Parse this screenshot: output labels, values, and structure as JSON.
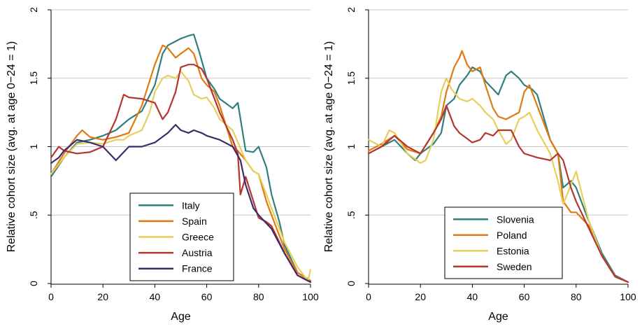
{
  "chart_data": [
    {
      "type": "line",
      "xlabel": "Age",
      "ylabel": "Relative cohort size (avg. at age 0−24 = 1)",
      "xlim": [
        0,
        100
      ],
      "ylim": [
        0,
        2
      ],
      "xticks": [
        0,
        20,
        40,
        60,
        80,
        100
      ],
      "yticks": [
        0,
        0.5,
        1,
        1.5,
        2
      ],
      "ytick_labels": [
        "0",
        ".5",
        "1",
        "1.5",
        "2"
      ],
      "grid": "horizontal",
      "legend_position": "bottom-right",
      "series": [
        {
          "name": "Italy",
          "color": "#2f7f7f",
          "x": [
            0,
            5,
            10,
            15,
            20,
            25,
            30,
            35,
            40,
            43,
            45,
            48,
            50,
            53,
            55,
            57,
            60,
            63,
            65,
            70,
            72,
            75,
            78,
            80,
            83,
            85,
            88,
            90,
            95,
            100
          ],
          "y": [
            0.78,
            0.92,
            1.03,
            1.05,
            1.08,
            1.12,
            1.2,
            1.26,
            1.45,
            1.68,
            1.74,
            1.77,
            1.79,
            1.81,
            1.82,
            1.7,
            1.5,
            1.42,
            1.35,
            1.28,
            1.32,
            0.97,
            0.96,
            1.0,
            0.85,
            0.65,
            0.45,
            0.28,
            0.08,
            0.02
          ]
        },
        {
          "name": "Spain",
          "color": "#e07a10",
          "x": [
            0,
            5,
            10,
            12,
            15,
            20,
            25,
            30,
            35,
            40,
            43,
            45,
            48,
            50,
            53,
            55,
            58,
            60,
            63,
            65,
            70,
            72,
            75,
            78,
            80,
            83,
            85,
            88,
            90,
            95,
            100
          ],
          "y": [
            0.8,
            0.95,
            1.08,
            1.12,
            1.07,
            1.05,
            1.07,
            1.1,
            1.3,
            1.6,
            1.74,
            1.72,
            1.65,
            1.68,
            1.72,
            1.68,
            1.5,
            1.45,
            1.4,
            1.3,
            1.0,
            0.97,
            0.9,
            0.82,
            0.8,
            0.6,
            0.5,
            0.35,
            0.25,
            0.08,
            0.02
          ]
        },
        {
          "name": "Greece",
          "color": "#e6cf5a",
          "x": [
            0,
            5,
            10,
            15,
            20,
            25,
            28,
            30,
            35,
            38,
            40,
            43,
            45,
            48,
            50,
            53,
            55,
            58,
            60,
            63,
            65,
            70,
            75,
            78,
            80,
            82,
            85,
            88,
            90,
            95,
            99,
            100
          ],
          "y": [
            0.8,
            0.92,
            1.02,
            1.03,
            1.02,
            1.05,
            1.05,
            1.08,
            1.12,
            1.25,
            1.4,
            1.5,
            1.52,
            1.5,
            1.55,
            1.48,
            1.38,
            1.35,
            1.36,
            1.28,
            1.2,
            1.12,
            0.9,
            0.82,
            0.8,
            0.7,
            0.55,
            0.4,
            0.3,
            0.12,
            0.02,
            0.1
          ]
        },
        {
          "name": "Austria",
          "color": "#b5362e",
          "x": [
            0,
            3,
            5,
            10,
            15,
            20,
            25,
            28,
            30,
            35,
            40,
            43,
            45,
            48,
            50,
            53,
            55,
            58,
            60,
            63,
            65,
            70,
            72,
            73,
            75,
            78,
            80,
            83,
            85,
            88,
            90,
            95,
            100
          ],
          "y": [
            0.92,
            1.0,
            0.97,
            0.95,
            0.96,
            1.0,
            1.2,
            1.38,
            1.36,
            1.35,
            1.32,
            1.2,
            1.25,
            1.4,
            1.58,
            1.6,
            1.6,
            1.57,
            1.5,
            1.35,
            1.25,
            1.05,
            0.95,
            0.65,
            0.78,
            0.6,
            0.48,
            0.45,
            0.42,
            0.3,
            0.22,
            0.06,
            0.01
          ]
        },
        {
          "name": "France",
          "color": "#3e2a6a",
          "x": [
            0,
            3,
            5,
            10,
            15,
            20,
            25,
            30,
            35,
            40,
            45,
            48,
            50,
            53,
            55,
            58,
            60,
            65,
            70,
            73,
            75,
            78,
            80,
            85,
            90,
            95,
            100
          ],
          "y": [
            0.88,
            0.92,
            0.97,
            1.05,
            1.03,
            1.0,
            0.9,
            1.0,
            1.0,
            1.03,
            1.1,
            1.16,
            1.12,
            1.1,
            1.12,
            1.1,
            1.08,
            1.05,
            1.0,
            0.9,
            0.72,
            0.55,
            0.5,
            0.4,
            0.22,
            0.06,
            0.01
          ]
        }
      ]
    },
    {
      "type": "line",
      "xlabel": "Age",
      "ylabel": "Relative cohort size (avg. at age 0−24 = 1)",
      "xlim": [
        0,
        100
      ],
      "ylim": [
        0,
        2
      ],
      "xticks": [
        0,
        20,
        40,
        60,
        80,
        100
      ],
      "yticks": [
        0,
        0.5,
        1,
        1.5,
        2
      ],
      "ytick_labels": [
        "0",
        ".5",
        "1",
        "1.5",
        "2"
      ],
      "grid": "horizontal",
      "legend_position": "bottom-right",
      "series": [
        {
          "name": "Slovenia",
          "color": "#2f7f7f",
          "x": [
            0,
            5,
            10,
            15,
            18,
            20,
            25,
            28,
            30,
            33,
            35,
            38,
            40,
            43,
            45,
            48,
            50,
            53,
            55,
            58,
            60,
            63,
            65,
            70,
            73,
            75,
            78,
            80,
            85,
            90,
            95,
            100
          ],
          "y": [
            0.95,
            1.0,
            1.05,
            0.95,
            0.9,
            0.95,
            1.02,
            1.1,
            1.3,
            1.35,
            1.45,
            1.52,
            1.58,
            1.55,
            1.48,
            1.42,
            1.38,
            1.52,
            1.55,
            1.5,
            1.45,
            1.42,
            1.38,
            1.05,
            0.95,
            0.7,
            0.75,
            0.7,
            0.45,
            0.22,
            0.06,
            0.01
          ]
        },
        {
          "name": "Poland",
          "color": "#e07a10",
          "x": [
            0,
            5,
            10,
            15,
            20,
            25,
            28,
            30,
            33,
            35,
            36,
            38,
            40,
            43,
            45,
            48,
            50,
            53,
            55,
            58,
            60,
            62,
            65,
            70,
            73,
            75,
            78,
            80,
            85,
            90,
            95,
            100
          ],
          "y": [
            0.97,
            1.02,
            1.08,
            0.98,
            0.95,
            1.1,
            1.22,
            1.4,
            1.58,
            1.65,
            1.7,
            1.6,
            1.55,
            1.58,
            1.45,
            1.28,
            1.22,
            1.2,
            1.22,
            1.25,
            1.4,
            1.45,
            1.3,
            1.05,
            0.95,
            0.6,
            0.52,
            0.52,
            0.42,
            0.2,
            0.05,
            0.01
          ]
        },
        {
          "name": "Estonia",
          "color": "#e6cf5a",
          "x": [
            0,
            5,
            8,
            10,
            15,
            20,
            22,
            25,
            28,
            30,
            32,
            35,
            38,
            40,
            43,
            45,
            48,
            50,
            53,
            55,
            58,
            60,
            62,
            65,
            70,
            73,
            75,
            78,
            80,
            85,
            90,
            95,
            100
          ],
          "y": [
            1.05,
            1.0,
            1.12,
            1.1,
            0.95,
            0.88,
            0.9,
            1.05,
            1.4,
            1.5,
            1.42,
            1.35,
            1.33,
            1.35,
            1.3,
            1.25,
            1.2,
            1.12,
            1.02,
            1.05,
            1.2,
            1.22,
            1.25,
            1.12,
            0.95,
            0.75,
            0.58,
            0.72,
            0.82,
            0.45,
            0.2,
            0.05,
            0.01
          ]
        },
        {
          "name": "Sweden",
          "color": "#b5362e",
          "x": [
            0,
            5,
            10,
            15,
            20,
            25,
            28,
            30,
            33,
            35,
            40,
            43,
            45,
            48,
            50,
            55,
            58,
            60,
            65,
            70,
            73,
            75,
            78,
            80,
            85,
            90,
            95,
            100
          ],
          "y": [
            0.95,
            1.0,
            1.08,
            1.0,
            0.95,
            1.1,
            1.2,
            1.3,
            1.15,
            1.1,
            1.03,
            1.05,
            1.1,
            1.08,
            1.12,
            1.12,
            1.0,
            0.95,
            0.92,
            0.9,
            0.95,
            0.9,
            0.7,
            0.6,
            0.4,
            0.2,
            0.05,
            0.01
          ]
        }
      ]
    }
  ]
}
